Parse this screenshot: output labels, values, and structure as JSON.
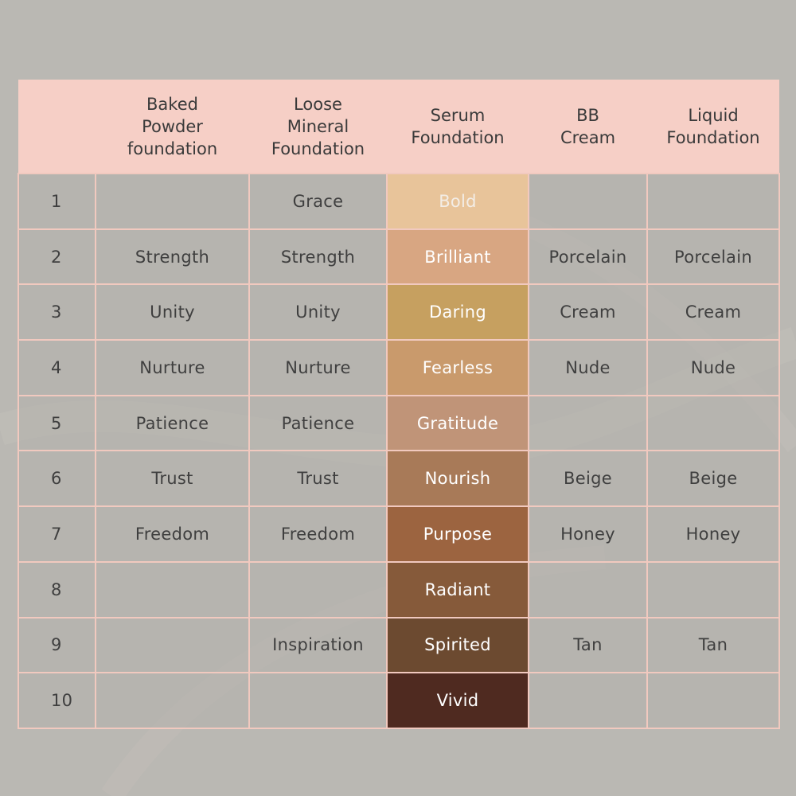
{
  "table": {
    "headers": [
      "",
      "Baked\nPowder\nfoundation",
      "Loose\nMineral\nFoundation",
      "Serum\nFoundation",
      "BB\nCream",
      "Liquid\nFoundation"
    ],
    "rows": [
      {
        "num": "1",
        "baked": "",
        "loose": "Grace",
        "serum": "Bold",
        "bb": "",
        "liquid": "",
        "serum_color": "#e8c49a"
      },
      {
        "num": "2",
        "baked": "Strength",
        "loose": "Strength",
        "serum": "Brilliant",
        "bb": "Porcelain",
        "liquid": "Porcelain",
        "serum_color": "#d8a682"
      },
      {
        "num": "3",
        "baked": "Unity",
        "loose": "Unity",
        "serum": "Daring",
        "bb": "Cream",
        "liquid": "Cream",
        "serum_color": "#c6a060"
      },
      {
        "num": "4",
        "baked": "Nurture",
        "loose": "Nurture",
        "serum": "Fearless",
        "bb": "Nude",
        "liquid": "Nude",
        "serum_color": "#c99a6c"
      },
      {
        "num": "5",
        "baked": "Patience",
        "loose": "Patience",
        "serum": "Gratitude",
        "bb": "",
        "liquid": "",
        "serum_color": "#c09478"
      },
      {
        "num": "6",
        "baked": "Trust",
        "loose": "Trust",
        "serum": "Nourish",
        "bb": "Beige",
        "liquid": "Beige",
        "serum_color": "#a87a58"
      },
      {
        "num": "7",
        "baked": "Freedom",
        "loose": "Freedom",
        "serum": "Purpose",
        "bb": "Honey",
        "liquid": "Honey",
        "serum_color": "#9c6440"
      },
      {
        "num": "8",
        "baked": "",
        "loose": "",
        "serum": "Radiant",
        "bb": "",
        "liquid": "",
        "serum_color": "#865a3a"
      },
      {
        "num": "9",
        "baked": "",
        "loose": "Inspiration",
        "serum": "Spirited",
        "bb": "Tan",
        "liquid": "Tan",
        "serum_color": "#6c4a30"
      },
      {
        "num": "10",
        "baked": "",
        "loose": "",
        "serum": "Vivid",
        "bb": "",
        "liquid": "",
        "serum_color": "#4f2a20"
      }
    ]
  }
}
